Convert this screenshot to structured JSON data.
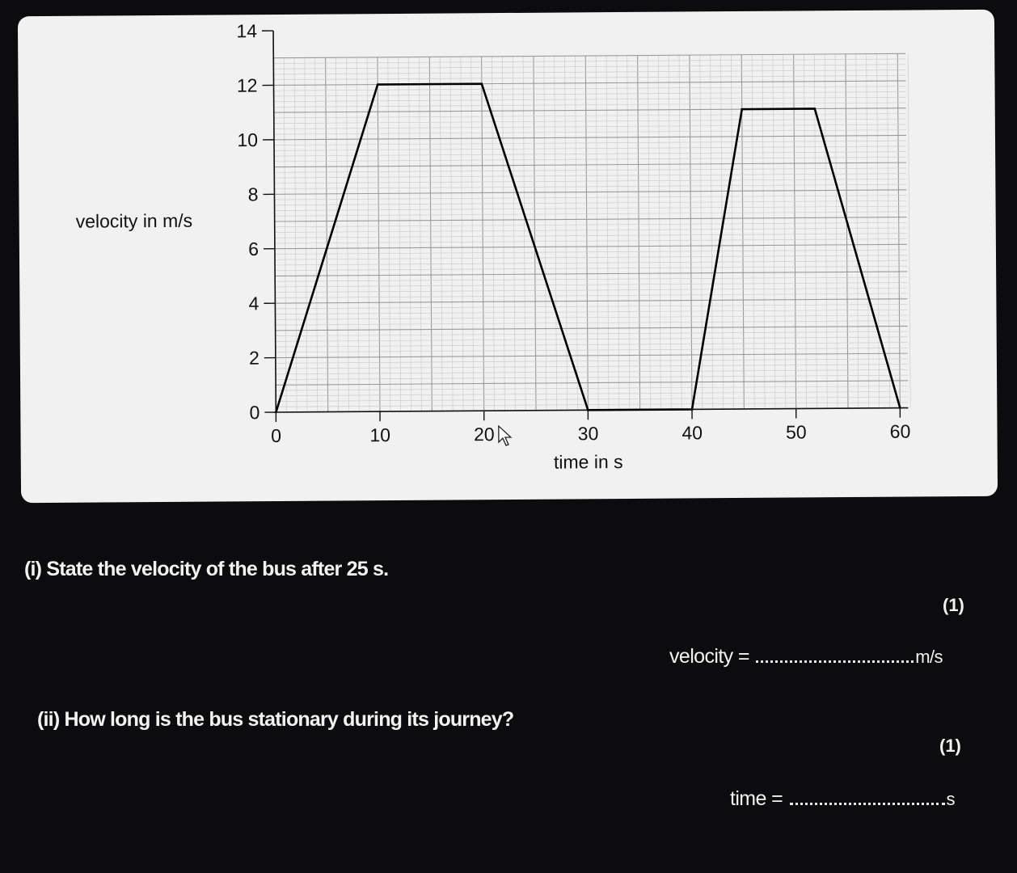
{
  "chart_data": {
    "type": "line",
    "title": "",
    "xlabel": "time in s",
    "ylabel": "velocity in m/s",
    "xlim": [
      0,
      60
    ],
    "ylim": [
      0,
      14
    ],
    "xticks": [
      0,
      10,
      20,
      30,
      40,
      50,
      60
    ],
    "yticks": [
      0,
      2,
      4,
      6,
      8,
      10,
      12,
      14
    ],
    "grid": true,
    "series": [
      {
        "x": [
          0,
          10,
          20,
          30,
          40,
          45,
          52,
          60
        ],
        "y": [
          0,
          12,
          12,
          0,
          0,
          11,
          11,
          0
        ]
      }
    ]
  },
  "questions": [
    {
      "text": "(i) State the velocity of the bus after 25 s.",
      "marks": "(1)",
      "answer_label": "velocity =",
      "answer_unit": "m/s"
    },
    {
      "text": "(ii) How long is the bus stationary during its journey?",
      "marks": "(1)",
      "answer_label": "time =",
      "answer_unit": "s"
    }
  ],
  "colors": {
    "background": "#0c0c0e",
    "card": "#f1f1f1",
    "grid": "#b5b5b5",
    "line": "#000000",
    "question_text": "#f2f2f2"
  },
  "icons": [
    "mouse-pointer-icon"
  ]
}
